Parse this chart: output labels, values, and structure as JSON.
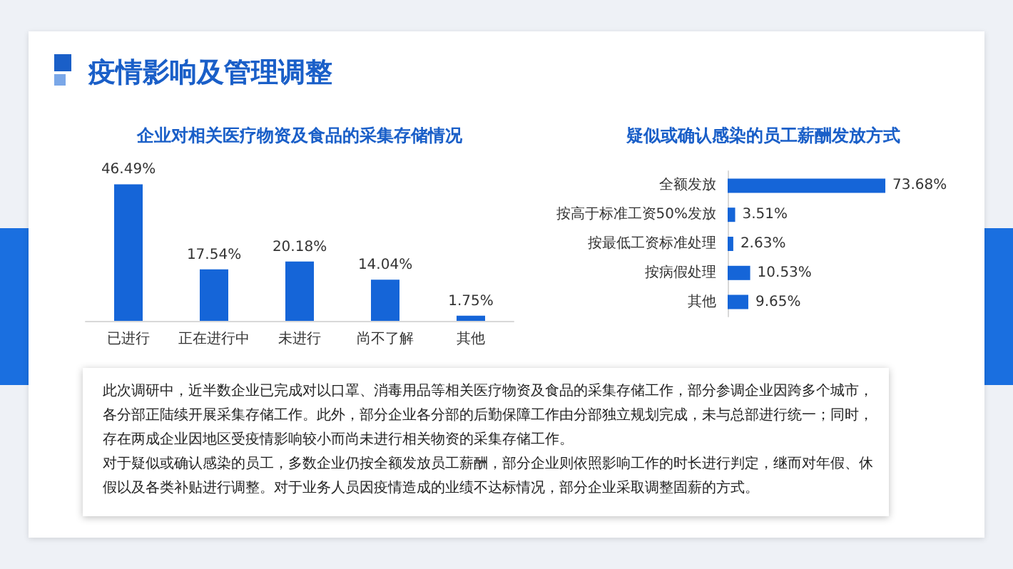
{
  "chart_data": [
    {
      "type": "other",
      "title": "疫情影响及管理调整"
    },
    {
      "type": "bar",
      "title": "企业对相关医疗物资及食品的采集存储情况",
      "categories": [
        "已进行",
        "正在进行中",
        "未进行",
        "尚不了解",
        "其他"
      ],
      "values": [
        46.49,
        17.54,
        20.18,
        14.04,
        1.75
      ],
      "value_labels": [
        "46.49%",
        "17.54%",
        "20.18%",
        "14.04%",
        "1.75%"
      ],
      "color": "#1565d8"
    },
    {
      "type": "bar",
      "orientation": "horizontal",
      "title": "疑似或确认感染的员工薪酬发放方式",
      "categories": [
        "全额发放",
        "按高于标准工资50%发放",
        "按最低工资标准处理",
        "按病假处理",
        "其他"
      ],
      "values": [
        73.68,
        3.51,
        2.63,
        10.53,
        9.65
      ],
      "value_labels": [
        "73.68%",
        "3.51%",
        "2.63%",
        "10.53%",
        "9.65%"
      ],
      "color": "#1565d8"
    },
    {
      "type": "other",
      "annotations": [
        "此次调研中，近半数企业已完成对以口罩、消毒用品等相关医疗物资及食品的采集存储工作，部分参调企业因跨多个城市，各分部正陆续开展采集存储工作。此外，部分企业各分部的后勤保障工作由分部独立规划完成，未与总部进行统一；同时，存在两成企业因地区受疫情影响较小而尚未进行相关物资的采集存储工作。",
        "对于疑似或确认感染的员工，多数企业仍按全额发放员工薪酬，部分企业则依照影响工作的时长进行判定，继而对年假、休假以及各类补贴进行调整。对于业务人员因疫情造成的业绩不达标情况，部分企业采取调整固薪的方式。"
      ]
    }
  ]
}
